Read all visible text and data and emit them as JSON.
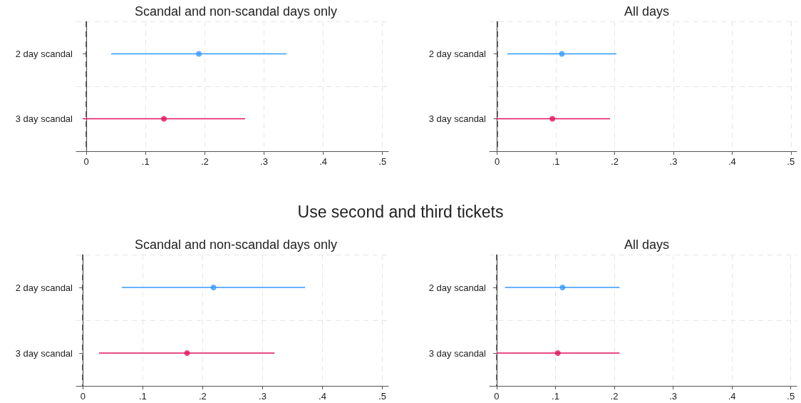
{
  "chart_data": [
    {
      "type": "scatter",
      "orientation": "horizontal",
      "title": "Scandal and non-scandal days only",
      "categories": [
        "2 day scandal",
        "3 day scandal"
      ],
      "values": [
        0.19,
        0.131
      ],
      "colors": [
        "#3399ff",
        "#e0115f"
      ],
      "errors": [
        [
          0.042,
          0.338
        ],
        [
          -0.006,
          0.268
        ]
      ],
      "xlim": [
        -0.017,
        0.51
      ],
      "xticks": [
        {
          "value": 0,
          "label": "0"
        },
        {
          "value": 0.1,
          "label": ".1"
        },
        {
          "value": 0.2,
          "label": ".2"
        },
        {
          "value": 0.3,
          "label": ".3"
        },
        {
          "value": 0.4,
          "label": ".4"
        },
        {
          "value": 0.5,
          "label": ".5"
        }
      ],
      "grid": true,
      "marker": "circle",
      "ref_lines": [
        {
          "axis": "x",
          "value": 0,
          "label": null,
          "color": "#444444",
          "line_style": "dashed"
        }
      ]
    },
    {
      "type": "scatter",
      "orientation": "horizontal",
      "title": "All days",
      "categories": [
        "2 day scandal",
        "3 day scandal"
      ],
      "values": [
        0.11,
        0.094
      ],
      "colors": [
        "#3399ff",
        "#e0115f"
      ],
      "errors": [
        [
          0.017,
          0.203
        ],
        [
          -0.002,
          0.192
        ]
      ],
      "xlim": [
        -0.013,
        0.51
      ],
      "xticks": [
        {
          "value": 0,
          "label": "0"
        },
        {
          "value": 0.1,
          "label": ".1"
        },
        {
          "value": 0.2,
          "label": ".2"
        },
        {
          "value": 0.3,
          "label": ".3"
        },
        {
          "value": 0.4,
          "label": ".4"
        },
        {
          "value": 0.5,
          "label": ".5"
        }
      ],
      "grid": true,
      "marker": "circle",
      "ref_lines": [
        {
          "axis": "x",
          "value": 0,
          "label": null,
          "color": "#444444",
          "line_style": "dashed"
        }
      ]
    },
    {
      "type": "scatter",
      "orientation": "horizontal",
      "title": "Scandal and non-scandal days only",
      "annotations": [
        "Use second and third tickets"
      ],
      "categories": [
        "2 day scandal",
        "3 day scandal"
      ],
      "values": [
        0.218,
        0.174
      ],
      "colors": [
        "#3399ff",
        "#e0115f"
      ],
      "errors": [
        [
          0.065,
          0.371
        ],
        [
          0.027,
          0.32
        ]
      ],
      "xlim": [
        -0.011,
        0.51
      ],
      "xticks": [
        {
          "value": 0,
          "label": "0"
        },
        {
          "value": 0.1,
          "label": ".1"
        },
        {
          "value": 0.2,
          "label": ".2"
        },
        {
          "value": 0.3,
          "label": ".3"
        },
        {
          "value": 0.4,
          "label": ".4"
        },
        {
          "value": 0.5,
          "label": ".5"
        }
      ],
      "grid": true,
      "marker": "circle",
      "ref_lines": [
        {
          "axis": "x",
          "value": 0,
          "label": null,
          "color": "#444444",
          "line_style": "dashed"
        }
      ]
    },
    {
      "type": "scatter",
      "orientation": "horizontal",
      "title": "All days",
      "categories": [
        "2 day scandal",
        "3 day scandal"
      ],
      "values": [
        0.112,
        0.104
      ],
      "colors": [
        "#3399ff",
        "#e0115f"
      ],
      "errors": [
        [
          0.014,
          0.209
        ],
        [
          0.0,
          0.209
        ]
      ],
      "xlim": [
        -0.012,
        0.51
      ],
      "xticks": [
        {
          "value": 0,
          "label": "0"
        },
        {
          "value": 0.1,
          "label": ".1"
        },
        {
          "value": 0.2,
          "label": ".2"
        },
        {
          "value": 0.3,
          "label": ".3"
        },
        {
          "value": 0.4,
          "label": ".4"
        },
        {
          "value": 0.5,
          "label": ".5"
        }
      ],
      "grid": true,
      "marker": "circle",
      "ref_lines": [
        {
          "axis": "x",
          "value": 0,
          "label": null,
          "color": "#444444",
          "line_style": "dashed"
        }
      ]
    }
  ]
}
